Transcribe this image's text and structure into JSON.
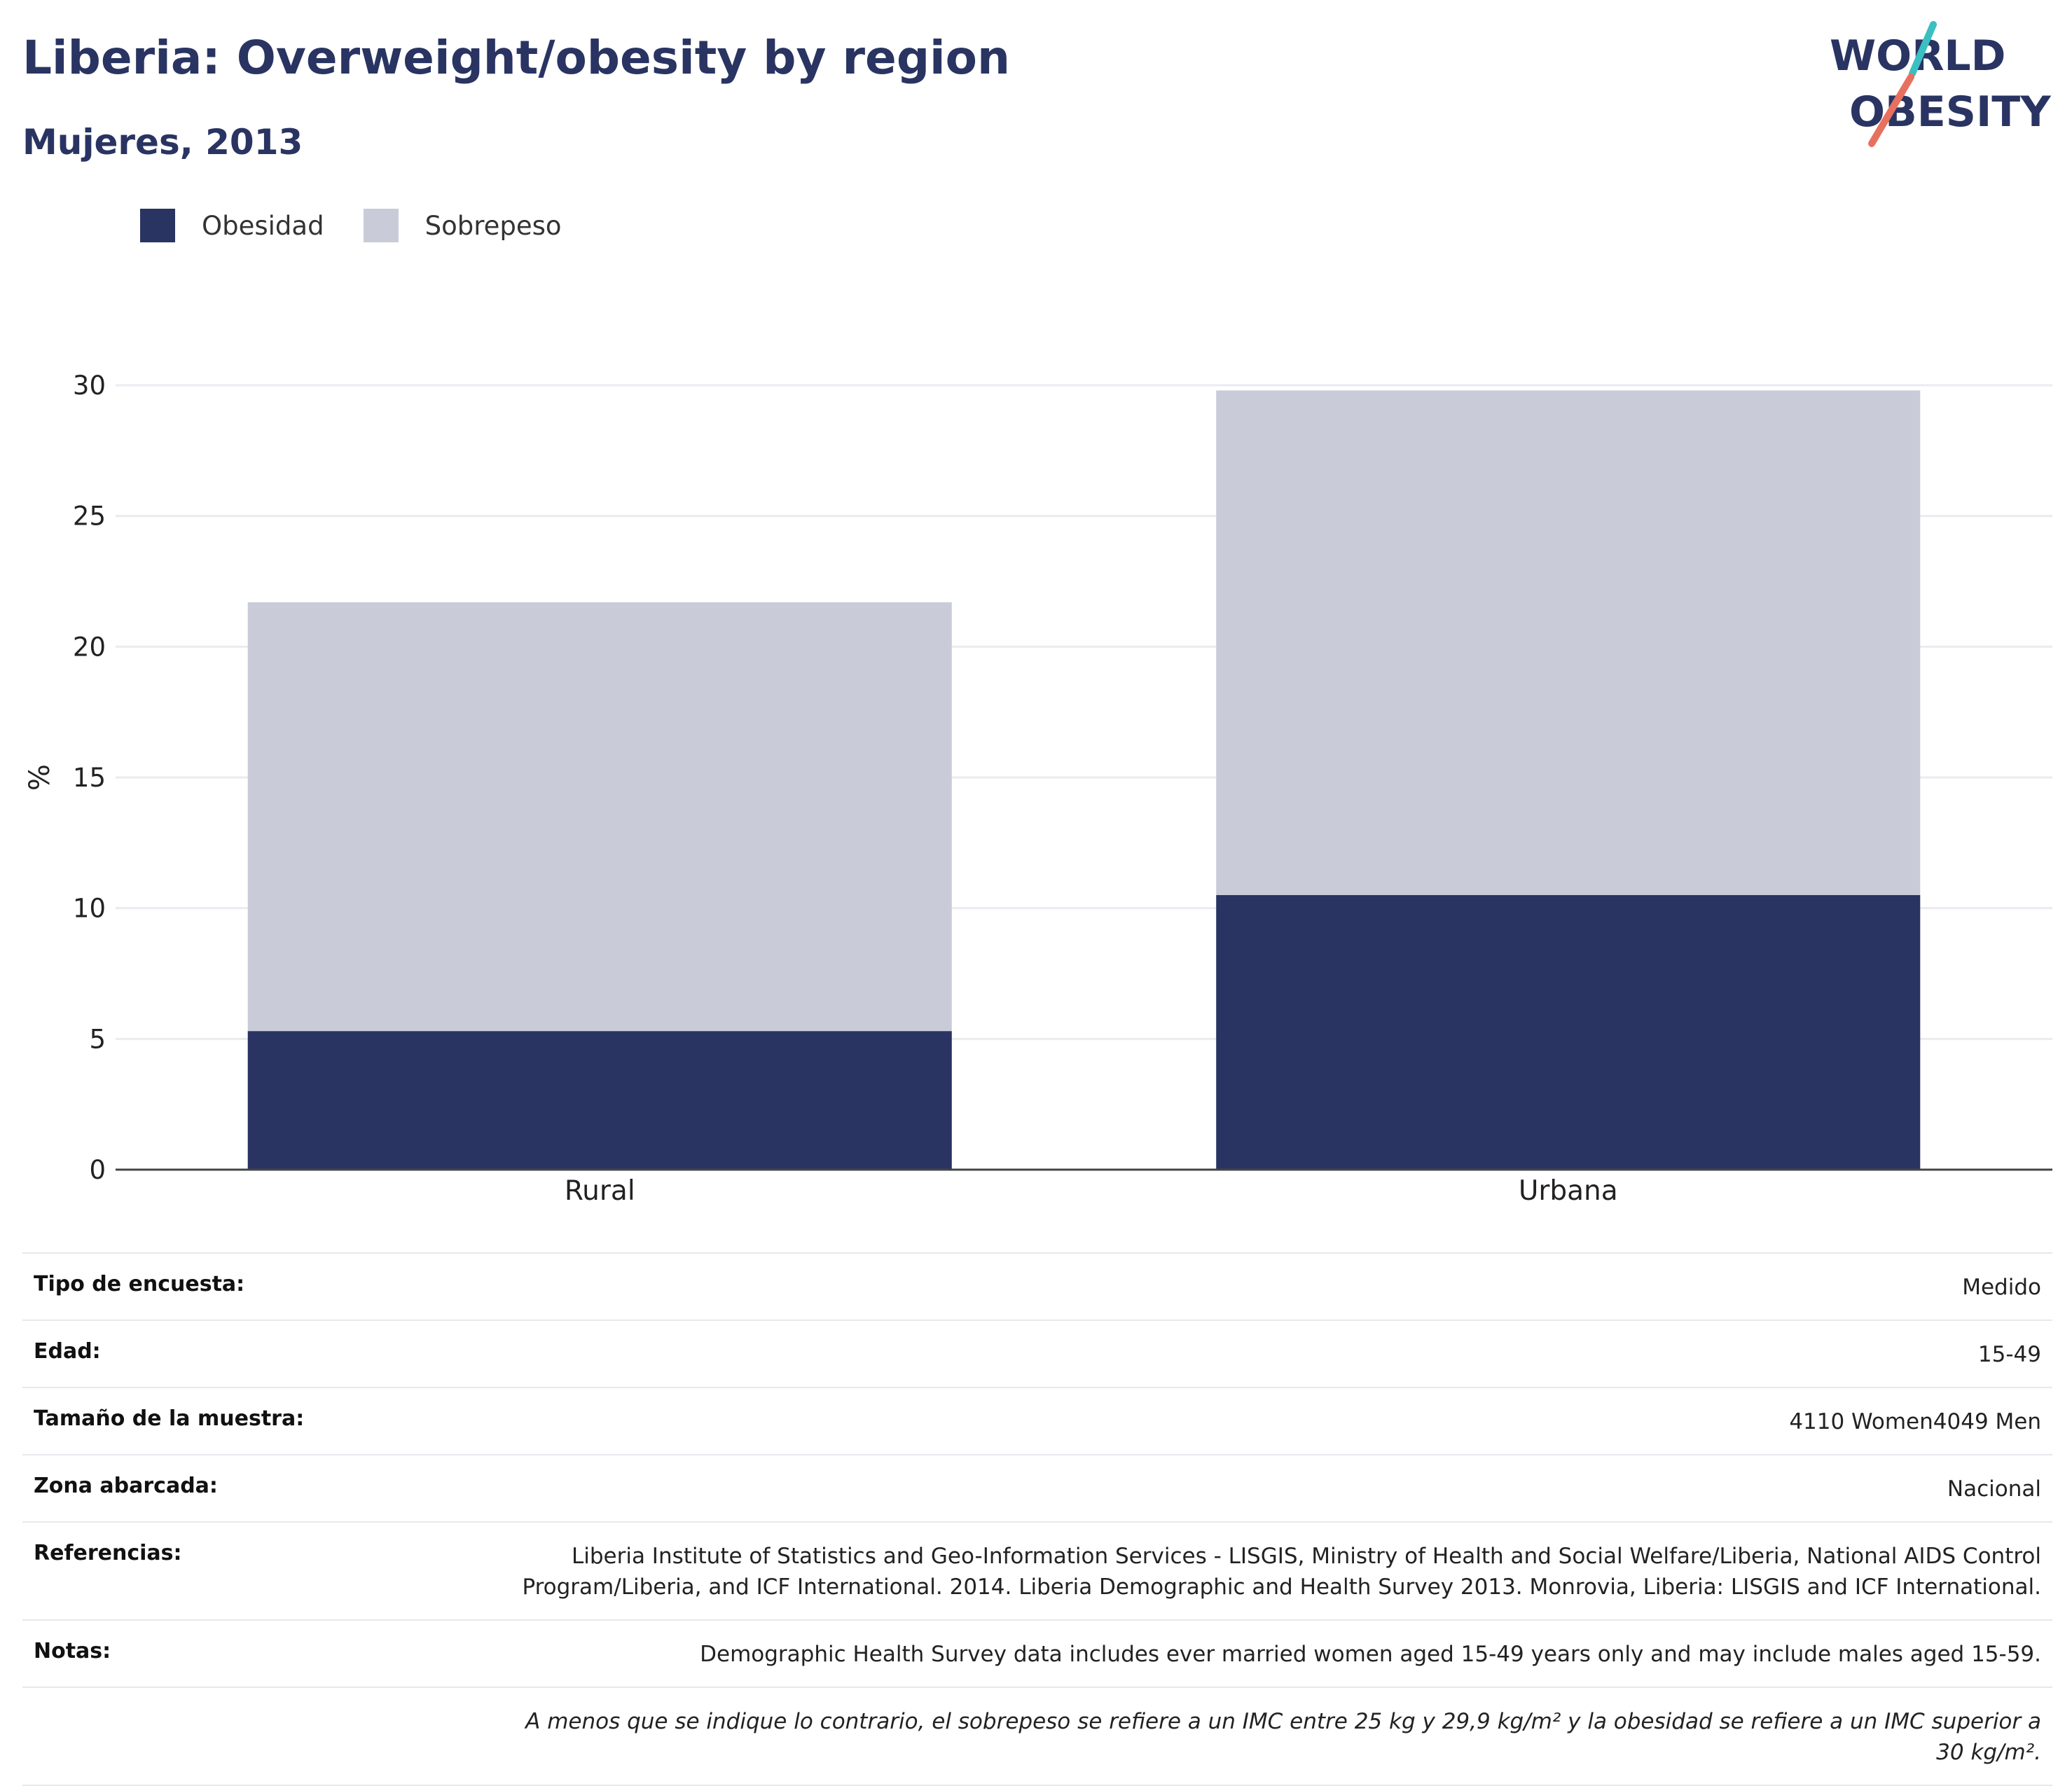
{
  "header": {
    "title": "Liberia: Overweight/obesity by region",
    "subtitle": "Mujeres, 2013",
    "logo_line1": "WORLD",
    "logo_line2": "OBESITY"
  },
  "legend": [
    {
      "label": "Obesidad",
      "color": "#293462"
    },
    {
      "label": "Sobrepeso",
      "color": "#c9ccd8"
    }
  ],
  "chart_data": {
    "type": "bar",
    "stacked": true,
    "categories": [
      "Rural",
      "Urbana"
    ],
    "series": [
      {
        "name": "Obesidad",
        "color": "#293462",
        "values": [
          5.3,
          10.5
        ]
      },
      {
        "name": "Sobrepeso",
        "color": "#c9ccd8",
        "values": [
          16.4,
          19.3
        ]
      }
    ],
    "ylabel": "%",
    "xlabel": "",
    "ylim": [
      0,
      30
    ],
    "yticks": [
      0,
      5,
      10,
      15,
      20,
      25,
      30
    ],
    "grid": true,
    "legend_position": "top-left"
  },
  "meta": [
    {
      "key": "Tipo de encuesta:",
      "value": "Medido"
    },
    {
      "key": "Edad:",
      "value": "15-49"
    },
    {
      "key": "Tamaño de la muestra:",
      "value": "4110 Women4049 Men"
    },
    {
      "key": "Zona abarcada:",
      "value": "Nacional"
    },
    {
      "key": "Referencias:",
      "value": "Liberia Institute of Statistics and Geo-Information Services - LISGIS, Ministry of Health and Social Welfare/Liberia, National AIDS Control Program/Liberia, and ICF International. 2014. Liberia Demographic and Health Survey 2013. Monrovia, Liberia: LISGIS and ICF International."
    },
    {
      "key": "Notas:",
      "value": "Demographic Health Survey data includes ever married women aged 15-49 years only and may include males aged 15-59."
    },
    {
      "key": "",
      "value": "A menos que se indique lo contrario, el sobrepeso se refiere a un IMC entre 25 kg y 29,9 kg/m² y la obesidad se refiere a un IMC superior a 30 kg/m²."
    }
  ]
}
